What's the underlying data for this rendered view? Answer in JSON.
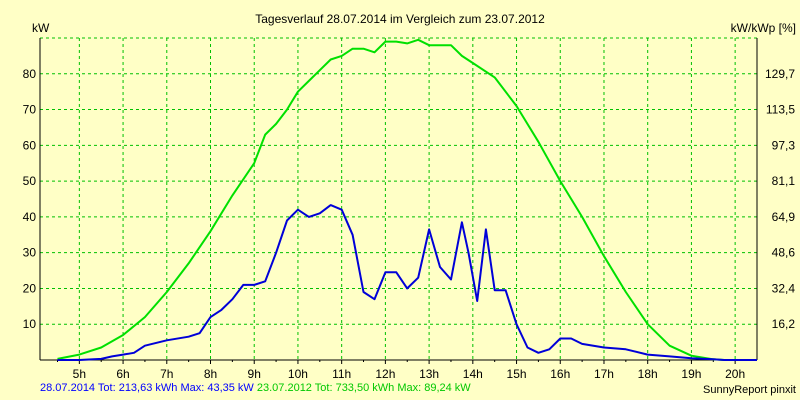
{
  "chart_data": {
    "type": "line",
    "title": "Tagesverlauf 28.07.2014 im Vergleich zum 23.07.2012",
    "y_left_unit": "kW",
    "y_right_unit": "kW/kWp [%]",
    "x_ticks": [
      "5h",
      "6h",
      "7h",
      "8h",
      "9h",
      "10h",
      "11h",
      "12h",
      "13h",
      "14h",
      "15h",
      "16h",
      "17h",
      "18h",
      "19h",
      "20h"
    ],
    "y_left_ticks": [
      "10",
      "20",
      "30",
      "40",
      "50",
      "60",
      "70",
      "80"
    ],
    "y_right_ticks": [
      "16,2",
      "32,4",
      "48,6",
      "64,9",
      "81,1",
      "97,3",
      "113,5",
      "129,7"
    ],
    "x_range_hours": [
      4.1,
      20.5
    ],
    "ylim": [
      0,
      90
    ],
    "grid": true,
    "series": [
      {
        "name": "23.07.2012",
        "color": "#00e000",
        "x": [
          4.5,
          5.0,
          5.5,
          6.0,
          6.5,
          7.0,
          7.5,
          8.0,
          8.5,
          9.0,
          9.25,
          9.5,
          9.75,
          10.0,
          10.25,
          10.5,
          10.75,
          11.0,
          11.25,
          11.5,
          11.75,
          12.0,
          12.25,
          12.5,
          12.75,
          13.0,
          13.25,
          13.5,
          13.75,
          14.0,
          14.5,
          15.0,
          15.5,
          16.0,
          16.5,
          17.0,
          17.5,
          18.0,
          18.5,
          19.0,
          19.5,
          19.75,
          20.0,
          20.5
        ],
        "y": [
          0.3,
          1.5,
          3.5,
          7,
          12,
          19,
          27,
          36,
          46,
          55,
          63,
          66,
          70,
          75,
          78,
          81,
          84,
          85,
          87,
          87,
          86,
          89,
          89,
          88.5,
          89.5,
          88,
          88,
          88,
          85,
          83,
          79,
          71,
          61,
          50,
          40,
          29,
          19,
          10,
          4,
          1.2,
          0.2,
          0,
          0,
          0
        ]
      },
      {
        "name": "28.07.2014",
        "color": "#0000d8",
        "x": [
          4.5,
          5.0,
          5.5,
          5.75,
          6.0,
          6.25,
          6.5,
          7.0,
          7.5,
          7.75,
          8.0,
          8.25,
          8.5,
          8.75,
          9.0,
          9.25,
          9.5,
          9.75,
          10.0,
          10.25,
          10.5,
          10.75,
          11.0,
          11.25,
          11.5,
          11.75,
          12.0,
          12.25,
          12.5,
          12.75,
          13.0,
          13.25,
          13.5,
          13.75,
          13.9,
          14.1,
          14.3,
          14.5,
          14.75,
          15.0,
          15.25,
          15.5,
          15.75,
          16.0,
          16.25,
          16.5,
          17.0,
          17.5,
          18.0,
          18.5,
          19.0,
          19.5,
          19.75,
          20.0,
          20.5
        ],
        "y": [
          0,
          0,
          0.3,
          1,
          1.5,
          2,
          4,
          5.5,
          6.5,
          7.5,
          12,
          14,
          17,
          21,
          21,
          22,
          30,
          39,
          42,
          40,
          41,
          43.3,
          42,
          35,
          19,
          17,
          24.5,
          24.5,
          20,
          23,
          36.5,
          26,
          22.5,
          38.5,
          30,
          16.5,
          36.5,
          19.5,
          19.5,
          10,
          3.5,
          2,
          3,
          6,
          6,
          4.5,
          3.5,
          3,
          1.5,
          1,
          0.5,
          0.2,
          0,
          0,
          0
        ]
      }
    ]
  },
  "footer": {
    "series1_label": "28.07.2014 Tot: 213,63 kWh Max: 43,35 kW",
    "series2_label": "23.07.2012 Tot: 733,50 kWh Max: 89,24 kW",
    "credit": "SunnyReport pinxit"
  }
}
